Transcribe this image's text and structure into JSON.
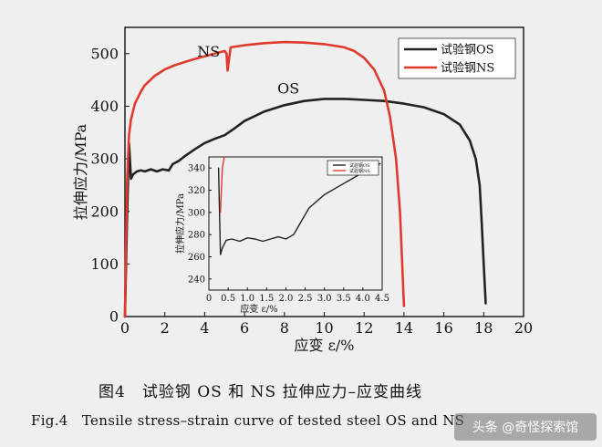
{
  "chart_data": [
    {
      "type": "line",
      "title": "",
      "xlabel": "应变 ε/%",
      "ylabel": "拉伸应力/MPa",
      "xlim": [
        0,
        20
      ],
      "ylim": [
        0,
        550
      ],
      "xticks": [
        0,
        2,
        4,
        6,
        8,
        10,
        12,
        14,
        16,
        18,
        20
      ],
      "yticks": [
        0,
        100,
        200,
        300,
        400,
        500
      ],
      "legend_position": "top-right",
      "grid": false,
      "series": [
        {
          "name": "试验钢OS",
          "color": "#222222",
          "x": [
            0.0,
            0.1,
            0.2,
            0.3,
            0.4,
            0.6,
            0.8,
            1.0,
            1.3,
            1.6,
            1.9,
            2.2,
            2.4,
            2.7,
            3.0,
            3.5,
            4.0,
            4.5,
            5.0,
            5.5,
            6.0,
            7.0,
            8.0,
            9.0,
            10.0,
            11.0,
            12.0,
            13.0,
            14.0,
            15.0,
            16.0,
            16.8,
            17.3,
            17.6,
            17.8,
            17.9,
            18.0,
            18.1
          ],
          "y": [
            0,
            180,
            330,
            262,
            270,
            276,
            278,
            276,
            280,
            276,
            280,
            278,
            290,
            296,
            305,
            318,
            330,
            338,
            345,
            358,
            372,
            390,
            402,
            410,
            414,
            414,
            412,
            410,
            405,
            398,
            385,
            365,
            335,
            300,
            250,
            180,
            100,
            25
          ]
        },
        {
          "name": "试验钢NS",
          "color": "#e03a2e",
          "x": [
            0.0,
            0.1,
            0.2,
            0.3,
            0.5,
            0.8,
            1.0,
            1.5,
            2.0,
            2.5,
            3.0,
            3.5,
            4.0,
            4.5,
            5.0,
            5.1,
            5.15,
            5.3,
            6.0,
            7.0,
            8.0,
            9.0,
            10.0,
            11.0,
            11.5,
            12.0,
            12.5,
            13.0,
            13.3,
            13.6,
            13.8,
            13.9,
            14.0
          ],
          "y": [
            0,
            250,
            345,
            375,
            405,
            428,
            440,
            458,
            470,
            478,
            484,
            490,
            495,
            500,
            505,
            500,
            468,
            512,
            516,
            520,
            522,
            521,
            518,
            512,
            505,
            492,
            470,
            430,
            380,
            300,
            200,
            110,
            20
          ]
        }
      ],
      "annotations": [
        "NS",
        "OS"
      ]
    },
    {
      "type": "line",
      "title": "",
      "xlabel": "应变 ε/%",
      "ylabel": "拉伸应力/MPa",
      "xlim": [
        0,
        4.5
      ],
      "ylim": [
        230,
        350
      ],
      "xticks": [
        0,
        0.5,
        1.0,
        1.5,
        2.0,
        2.5,
        3.0,
        3.5,
        4.0,
        4.5
      ],
      "xticklabels": [
        "0",
        "0.5",
        "1.0",
        "1.5",
        "2.0",
        "2.5",
        "3.0",
        "3.5",
        "4.0",
        "4.5"
      ],
      "yticks": [
        240,
        260,
        280,
        300,
        320,
        340
      ],
      "legend_position": "top-right",
      "series": [
        {
          "name": "试验钢OS",
          "color": "#222222",
          "x": [
            0.25,
            0.3,
            0.35,
            0.45,
            0.6,
            0.8,
            1.0,
            1.2,
            1.4,
            1.6,
            1.8,
            2.0,
            2.2,
            2.4,
            2.6,
            2.8,
            3.0,
            3.5,
            4.0,
            4.3,
            4.45
          ],
          "y": [
            340,
            262,
            268,
            275,
            276,
            274,
            277,
            276,
            274,
            276,
            278,
            276,
            280,
            292,
            304,
            310,
            316,
            326,
            336,
            341,
            344
          ]
        },
        {
          "name": "试验钢NS",
          "color": "#e03a2e",
          "x": [
            0.3,
            0.35,
            0.4
          ],
          "y": [
            300,
            340,
            350
          ]
        }
      ]
    }
  ],
  "caption": {
    "zh": "图4　试验钢 OS 和 NS 拉伸应力–应变曲线",
    "en": "Fig.4　Tensile stress–strain curve of tested steel OS and NS"
  },
  "watermark": "头条 @奇怪探索馆"
}
